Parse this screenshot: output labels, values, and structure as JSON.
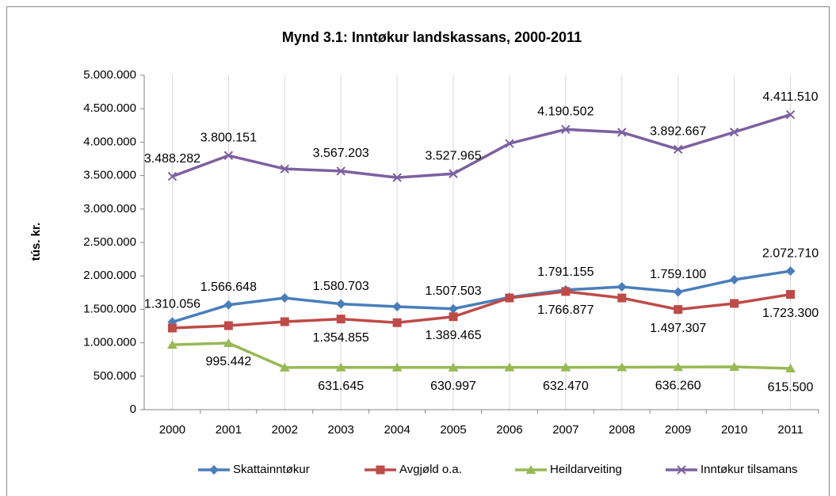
{
  "chart_data": {
    "type": "line",
    "title": "Mynd 3.1: Inntøkur landskassans, 2000-2011",
    "y_label": "tús. kr.",
    "categories": [
      "2000",
      "2001",
      "2002",
      "2003",
      "2004",
      "2005",
      "2006",
      "2007",
      "2008",
      "2009",
      "2010",
      "2011"
    ],
    "ylim": [
      0,
      5000000
    ],
    "yticks": [
      0,
      {
        "value": 500000,
        "label": "500.000"
      },
      {
        "value": 1000000,
        "label": "1.000.000"
      },
      {
        "value": 1500000,
        "label": "1.500.000"
      },
      {
        "value": 2000000,
        "label": "2.000.000"
      },
      {
        "value": 2500000,
        "label": "2.500.000"
      },
      {
        "value": 3000000,
        "label": "3.000.000"
      },
      {
        "value": 3500000,
        "label": "3.500.000"
      },
      {
        "value": 4000000,
        "label": "4.000.000"
      },
      {
        "value": 4500000,
        "label": "4.500.000"
      },
      {
        "value": 5000000,
        "label": "5.000.000"
      }
    ],
    "grid": "x",
    "legend": "bottom",
    "series": [
      {
        "name": "Skattainntøkur",
        "color": "#4a7ebb",
        "marker": "diamond",
        "label_position": "above",
        "values": [
          1310056,
          1566648,
          1670000,
          1580703,
          1540000,
          1507503,
          1680000,
          1791155,
          1836000,
          1759100,
          1943000,
          2072710
        ],
        "value_labels": [
          "1.310.056",
          "1.566.648",
          null,
          "1.580.703",
          null,
          "1.507.503",
          null,
          "1.791.155",
          null,
          "1.759.100",
          null,
          "2.072.710"
        ]
      },
      {
        "name": "Avgjøld o.a.",
        "color": "#be4b48",
        "marker": "square",
        "label_position": "below",
        "values": [
          1220000,
          1256000,
          1315000,
          1354855,
          1300000,
          1389465,
          1670000,
          1766877,
          1670000,
          1497307,
          1588000,
          1723300
        ],
        "value_labels": [
          null,
          null,
          null,
          "1.354.855",
          null,
          "1.389.465",
          null,
          "1.766.877",
          null,
          "1.497.307",
          null,
          "1.723.300"
        ]
      },
      {
        "name": "Heildarveiting",
        "color": "#98b954",
        "marker": "triangle",
        "label_position": "below",
        "values": [
          970000,
          995442,
          630000,
          631645,
          631000,
          630997,
          632000,
          632470,
          634000,
          636260,
          640000,
          615500
        ],
        "value_labels": [
          null,
          "995.442",
          null,
          "631.645",
          null,
          "630.997",
          null,
          "632.470",
          null,
          "636.260",
          null,
          "615.500"
        ]
      },
      {
        "name": "Inntøkur tilsamans",
        "color": "#7d60a0",
        "marker": "x",
        "label_position": "above",
        "values": [
          3488282,
          3800151,
          3600000,
          3567203,
          3470000,
          3527965,
          3980000,
          4190502,
          4147000,
          3892667,
          4150000,
          4411510
        ],
        "value_labels": [
          "3.488.282",
          "3.800.151",
          null,
          "3.567.203",
          null,
          "3.527.965",
          null,
          "4.190.502",
          null,
          "3.892.667",
          null,
          "4.411.510"
        ]
      }
    ]
  }
}
